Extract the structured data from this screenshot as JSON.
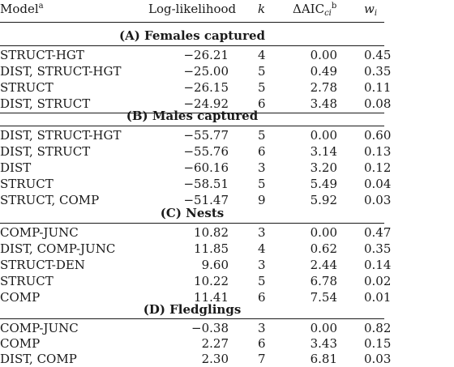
{
  "header": {
    "model": "Model",
    "model_sup": "a",
    "log_likelihood": "Log-likelihood",
    "k": "k",
    "aic": "ΔAIC",
    "aic_sub": "ci",
    "aic_sup": "b",
    "w": "w",
    "w_sub": "i"
  },
  "sections": [
    {
      "title": "(A) Females captured",
      "rows": [
        {
          "model": "STRUCT-HGT",
          "ll": "−26.21",
          "k": "4",
          "aic": "0.00",
          "w": "0.45"
        },
        {
          "model": "DIST, STRUCT-HGT",
          "ll": "−25.00",
          "k": "5",
          "aic": "0.49",
          "w": "0.35"
        },
        {
          "model": "STRUCT",
          "ll": "−26.15",
          "k": "5",
          "aic": "2.78",
          "w": "0.11"
        },
        {
          "model": "DIST, STRUCT",
          "ll": "−24.92",
          "k": "6",
          "aic": "3.48",
          "w": "0.08"
        }
      ]
    },
    {
      "title": "(B) Males captured",
      "rows": [
        {
          "model": "DIST, STRUCT-HGT",
          "ll": "−55.77",
          "k": "5",
          "aic": "0.00",
          "w": "0.60"
        },
        {
          "model": "DIST, STRUCT",
          "ll": "−55.76",
          "k": "6",
          "aic": "3.14",
          "w": "0.13"
        },
        {
          "model": "DIST",
          "ll": "−60.16",
          "k": "3",
          "aic": "3.20",
          "w": "0.12"
        },
        {
          "model": "STRUCT",
          "ll": "−58.51",
          "k": "5",
          "aic": "5.49",
          "w": "0.04"
        },
        {
          "model": "STRUCT, COMP",
          "ll": "−51.47",
          "k": "9",
          "aic": "5.92",
          "w": "0.03"
        }
      ]
    },
    {
      "title": "(C) Nests",
      "rows": [
        {
          "model": "COMP-JUNC",
          "ll": "10.82",
          "k": "3",
          "aic": "0.00",
          "w": "0.47"
        },
        {
          "model": "DIST, COMP-JUNC",
          "ll": "11.85",
          "k": "4",
          "aic": "0.62",
          "w": "0.35"
        },
        {
          "model": "STRUCT-DEN",
          "ll": "9.60",
          "k": "3",
          "aic": "2.44",
          "w": "0.14"
        },
        {
          "model": "STRUCT",
          "ll": "10.22",
          "k": "5",
          "aic": "6.78",
          "w": "0.02"
        },
        {
          "model": "COMP",
          "ll": "11.41",
          "k": "6",
          "aic": "7.54",
          "w": "0.01"
        }
      ]
    },
    {
      "title": "(D) Fledglings",
      "rows": [
        {
          "model": "COMP-JUNC",
          "ll": "−0.38",
          "k": "3",
          "aic": "0.00",
          "w": "0.82"
        },
        {
          "model": "COMP",
          "ll": "2.27",
          "k": "6",
          "aic": "3.43",
          "w": "0.15"
        },
        {
          "model": "DIST, COMP",
          "ll": "2.30",
          "k": "7",
          "aic": "6.81",
          "w": "0.03"
        }
      ]
    }
  ]
}
